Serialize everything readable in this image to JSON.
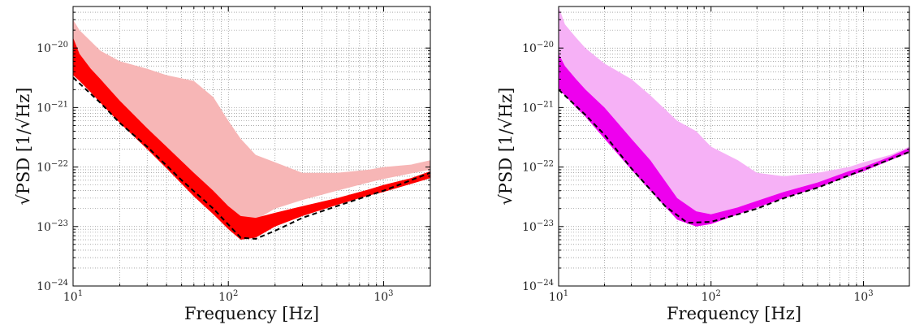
{
  "chart_data": [
    {
      "type": "area",
      "panel": "left",
      "xlabel": "Frequency [Hz]",
      "ylabel": "√PSD [1/√Hz]",
      "xscale": "log",
      "yscale": "log",
      "xlim": [
        10,
        2000
      ],
      "ylim": [
        1e-24,
        5e-20
      ],
      "grid": true,
      "x_ticks": [
        {
          "base": "10",
          "exp": "1"
        },
        {
          "base": "10",
          "exp": "2"
        },
        {
          "base": "10",
          "exp": "3"
        }
      ],
      "y_ticks": [
        {
          "base": "10",
          "exp": "−24"
        },
        {
          "base": "10",
          "exp": "−23"
        },
        {
          "base": "10",
          "exp": "−22"
        },
        {
          "base": "10",
          "exp": "−21"
        },
        {
          "base": "10",
          "exp": "−20"
        }
      ],
      "colors": {
        "band_outer": "#f7b6b6",
        "band_inner": "#ff0000",
        "reference": "#000000"
      },
      "series": [
        {
          "role": "band-outer",
          "x": [
            10,
            11,
            13,
            15,
            20,
            30,
            40,
            60,
            80,
            100,
            120,
            150,
            200,
            300,
            500,
            800,
            1000,
            1500,
            2000
          ],
          "y_low": [
            1e-20,
            6e-21,
            3.5e-21,
            2.2e-21,
            9e-22,
            3.2e-22,
            1.6e-22,
            5.5e-23,
            2.8e-23,
            1.6e-23,
            1.2e-23,
            1.3e-23,
            2e-23,
            2.8e-23,
            4e-23,
            5.5e-23,
            6.3e-23,
            7.8e-23,
            9e-23
          ],
          "y_high": [
            3e-20,
            2e-20,
            1.3e-20,
            9e-21,
            6e-21,
            4.5e-21,
            3.5e-21,
            2.8e-21,
            1.5e-21,
            6e-22,
            3e-22,
            1.6e-22,
            1.2e-22,
            8e-23,
            8e-23,
            9e-23,
            1e-22,
            1.1e-22,
            1.3e-22
          ]
        },
        {
          "role": "band-inner",
          "x": [
            10,
            11,
            13,
            15,
            20,
            30,
            40,
            60,
            80,
            100,
            120,
            150,
            200,
            300,
            500,
            800,
            1000,
            1500,
            2000
          ],
          "y_low": [
            3.5e-21,
            2.8e-21,
            1.8e-21,
            1.2e-21,
            5.5e-22,
            2e-22,
            9.5e-23,
            3.2e-23,
            1.6e-23,
            9e-24,
            6e-24,
            6.5e-24,
            1e-23,
            1.5e-23,
            2.3e-23,
            3.3e-23,
            3.8e-23,
            5.2e-23,
            6.5e-23
          ],
          "y_high": [
            1.5e-20,
            8e-21,
            4.5e-21,
            3e-21,
            1.3e-21,
            4.5e-22,
            2.2e-22,
            8e-23,
            4e-23,
            2.2e-23,
            1.5e-23,
            1.4e-23,
            1.7e-23,
            2.2e-23,
            3e-23,
            4.2e-23,
            5e-23,
            6.5e-23,
            8.5e-23
          ]
        },
        {
          "role": "reference-dashed",
          "x": [
            10,
            15,
            20,
            30,
            50,
            80,
            120,
            150,
            200,
            300,
            500,
            1000,
            2000
          ],
          "y": [
            3.2e-21,
            1.2e-21,
            5.5e-22,
            2.2e-22,
            6e-23,
            2e-23,
            6.5e-24,
            6.2e-24,
            8.5e-24,
            1.4e-23,
            2.2e-23,
            4e-23,
            8e-23
          ]
        }
      ]
    },
    {
      "type": "area",
      "panel": "right",
      "xlabel": "Frequency [Hz]",
      "ylabel": "√PSD [1/√Hz]",
      "xscale": "log",
      "yscale": "log",
      "xlim": [
        10,
        2000
      ],
      "ylim": [
        1e-24,
        5e-20
      ],
      "grid": true,
      "x_ticks": [
        {
          "base": "10",
          "exp": "1"
        },
        {
          "base": "10",
          "exp": "2"
        },
        {
          "base": "10",
          "exp": "3"
        }
      ],
      "y_ticks": [
        {
          "base": "10",
          "exp": "−24"
        },
        {
          "base": "10",
          "exp": "−23"
        },
        {
          "base": "10",
          "exp": "−22"
        },
        {
          "base": "10",
          "exp": "−21"
        },
        {
          "base": "10",
          "exp": "−20"
        }
      ],
      "colors": {
        "band_outer": "#f6b1f6",
        "band_inner": "#ee00ee",
        "reference": "#000000"
      },
      "series": [
        {
          "role": "band-outer",
          "x": [
            10,
            11,
            13,
            15,
            20,
            30,
            40,
            60,
            80,
            100,
            150,
            200,
            300,
            500,
            800,
            1000,
            1500,
            2000
          ],
          "y_low": [
            5e-21,
            3.5e-21,
            2.2e-21,
            1.3e-21,
            5.5e-22,
            1.8e-22,
            7e-23,
            2.2e-23,
            1.2e-23,
            1.1e-23,
            1.6e-23,
            2e-23,
            3e-23,
            4.5e-23,
            7e-23,
            8.5e-23,
            1.3e-22,
            1.7e-22
          ],
          "y_high": [
            5e-20,
            2.5e-20,
            1.5e-20,
            1e-20,
            5.5e-21,
            3e-21,
            1.6e-21,
            6e-22,
            4e-22,
            2.2e-22,
            1.3e-22,
            8e-23,
            7e-23,
            8e-23,
            1e-22,
            1.2e-22,
            1.6e-22,
            2.2e-22
          ]
        },
        {
          "role": "band-inner",
          "x": [
            10,
            11,
            13,
            15,
            20,
            30,
            40,
            60,
            80,
            100,
            150,
            200,
            300,
            500,
            800,
            1000,
            1500,
            2000
          ],
          "y_low": [
            2e-21,
            1.6e-21,
            1e-21,
            7e-22,
            3e-22,
            9e-23,
            4e-23,
            1.3e-23,
            1e-23,
            1.1e-23,
            1.6e-23,
            2.1e-23,
            3e-23,
            4.5e-23,
            7e-23,
            8.5e-23,
            1.3e-22,
            1.8e-22
          ],
          "y_high": [
            8e-21,
            5e-21,
            3e-21,
            2e-21,
            1e-21,
            3e-22,
            1.3e-22,
            3e-23,
            1.8e-23,
            1.6e-23,
            2.1e-23,
            2.7e-23,
            3.8e-23,
            5.5e-23,
            8.5e-23,
            1e-22,
            1.5e-22,
            2.1e-22
          ]
        },
        {
          "role": "reference-dashed",
          "x": [
            10,
            15,
            20,
            30,
            50,
            70,
            100,
            150,
            200,
            300,
            500,
            1000,
            2000
          ],
          "y": [
            2e-21,
            7.5e-22,
            3.5e-22,
            9.5e-23,
            2.2e-23,
            1.15e-23,
            1.2e-23,
            1.6e-23,
            2e-23,
            3e-23,
            4.5e-23,
            9e-23,
            1.8e-22
          ]
        }
      ]
    }
  ]
}
